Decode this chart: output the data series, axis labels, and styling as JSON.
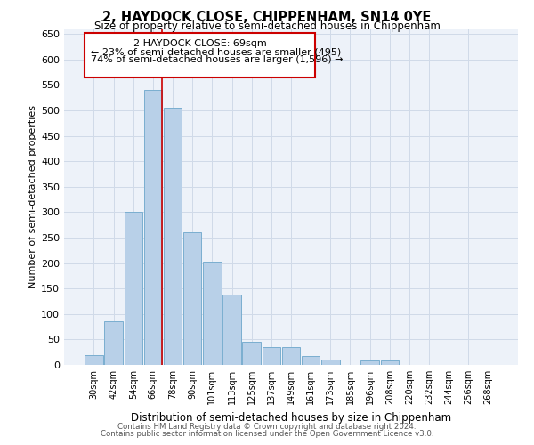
{
  "title": "2, HAYDOCK CLOSE, CHIPPENHAM, SN14 0YE",
  "subtitle": "Size of property relative to semi-detached houses in Chippenham",
  "xlabel": "Distribution of semi-detached houses by size in Chippenham",
  "ylabel": "Number of semi-detached properties",
  "footer1": "Contains HM Land Registry data © Crown copyright and database right 2024.",
  "footer2": "Contains public sector information licensed under the Open Government Licence v3.0.",
  "categories": [
    "30sqm",
    "42sqm",
    "54sqm",
    "66sqm",
    "78sqm",
    "90sqm",
    "101sqm",
    "113sqm",
    "125sqm",
    "137sqm",
    "149sqm",
    "161sqm",
    "173sqm",
    "185sqm",
    "196sqm",
    "208sqm",
    "220sqm",
    "232sqm",
    "244sqm",
    "256sqm",
    "268sqm"
  ],
  "values": [
    20,
    85,
    300,
    540,
    505,
    260,
    202,
    138,
    46,
    35,
    35,
    18,
    10,
    0,
    8,
    8,
    0,
    0,
    0,
    0,
    0
  ],
  "bar_color": "#b8d0e8",
  "bar_edge_color": "#7aaed0",
  "highlight_color": "#cc0000",
  "highlight_index": 3,
  "property_label": "2 HAYDOCK CLOSE: 69sqm",
  "pct_smaller": 23,
  "pct_larger": 74,
  "count_smaller": 495,
  "count_larger": 1596,
  "ylim": [
    0,
    660
  ],
  "yticks": [
    0,
    50,
    100,
    150,
    200,
    250,
    300,
    350,
    400,
    450,
    500,
    550,
    600,
    650
  ],
  "grid_color": "#d0dae8",
  "bg_color": "#edf2f9"
}
